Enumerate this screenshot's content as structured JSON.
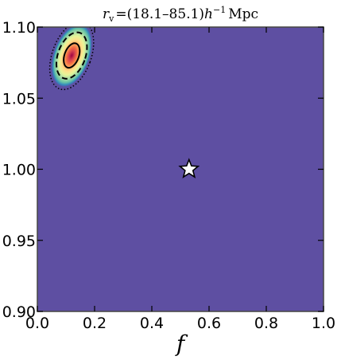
{
  "chart_data": {
    "type": "contour",
    "title": "r_v = (18.1–85.1) h^-1 Mpc",
    "title_parts": {
      "symbol": "r",
      "subscript": "v",
      "equals": "=",
      "range": "(18.1–85.1)",
      "h": "h",
      "exponent": "−1",
      "unit": "Mpc"
    },
    "xlabel": "f",
    "ylabel": "",
    "xlim": [
      0.0,
      1.0
    ],
    "ylim": [
      0.9,
      1.1
    ],
    "xticks": [
      "0.0",
      "0.2",
      "0.4",
      "0.6",
      "0.8",
      "1.0"
    ],
    "yticks": [
      "0.90",
      "0.95",
      "1.00",
      "1.05",
      "1.10"
    ],
    "xtick_values": [
      0.0,
      0.2,
      0.4,
      0.6,
      0.8,
      1.0
    ],
    "ytick_values": [
      0.9,
      0.95,
      1.0,
      1.05,
      1.1
    ],
    "background_color": "#5e4fa2",
    "colormap": [
      "#5e4fa2",
      "#3288bd",
      "#66c2a5",
      "#abdda4",
      "#e6f598",
      "#fee08b",
      "#fdae61",
      "#f46d43",
      "#d53e4f",
      "#9e0142"
    ],
    "peak": {
      "x": 0.12,
      "y": 1.08
    },
    "contours": [
      {
        "level": "1-sigma",
        "style": "solid",
        "rx": 0.025,
        "ry": 0.009
      },
      {
        "level": "2-sigma",
        "style": "dashed",
        "rx": 0.048,
        "ry": 0.017
      },
      {
        "level": "3-sigma",
        "style": "dotted",
        "rx": 0.068,
        "ry": 0.025
      }
    ],
    "marker": {
      "shape": "star",
      "x": 0.53,
      "y": 1.0,
      "color": "#ffffff"
    },
    "grid": false,
    "legend": "none"
  }
}
